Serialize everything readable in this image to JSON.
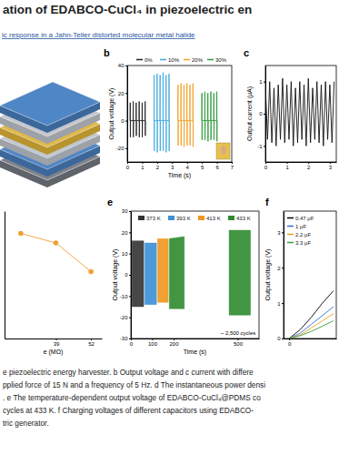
{
  "header": {
    "title": "ation of EDABCO-CuCl₄ in piezoelectric en",
    "subtitle": "ic response in a Jahn-Teller distorted molecular metal halide"
  },
  "chart_data": [
    {
      "type": "line",
      "title": "b",
      "xlabel": "Time (s)",
      "ylabel": "Output voltage (V)",
      "xlim": [
        0,
        7
      ],
      "xticks": [
        0,
        1,
        2,
        3,
        4,
        5,
        6,
        7
      ],
      "ylim": [
        -30,
        40
      ],
      "yticks": [
        -20,
        0,
        20,
        40
      ],
      "legend": "top",
      "series": [
        {
          "name": "0%",
          "color": "#222222",
          "x": [
            0.19,
            0.2,
            0.21,
            0.22,
            0.39,
            0.4,
            0.41,
            0.42,
            0.59,
            0.6,
            0.61,
            0.62,
            0.79,
            0.8,
            0.81,
            0.82,
            0.99,
            1.0,
            1.01,
            1.02,
            1.19,
            1.2,
            1.21,
            1.22
          ],
          "values": [
            0,
            13,
            -12,
            0,
            0,
            14,
            -12,
            0,
            0,
            13,
            -11,
            0,
            0,
            14,
            -12,
            0,
            0,
            13,
            -12,
            0,
            0,
            14,
            -11,
            0
          ]
        },
        {
          "name": "10%",
          "color": "#3fa9dc",
          "x": [
            1.79,
            1.8,
            1.81,
            1.82,
            1.99,
            2.0,
            2.01,
            2.02,
            2.19,
            2.2,
            2.21,
            2.22,
            2.39,
            2.4,
            2.41,
            2.42,
            2.59,
            2.6,
            2.61,
            2.62,
            2.79,
            2.8,
            2.81,
            2.82
          ],
          "values": [
            0,
            33,
            -22,
            0,
            0,
            34,
            -23,
            0,
            0,
            33,
            -22,
            0,
            0,
            35,
            -22,
            0,
            0,
            33,
            -23,
            0,
            0,
            34,
            -22,
            0
          ]
        },
        {
          "name": "20%",
          "color": "#f0a02a",
          "x": [
            3.39,
            3.4,
            3.41,
            3.42,
            3.59,
            3.6,
            3.61,
            3.62,
            3.79,
            3.8,
            3.81,
            3.82,
            3.99,
            4.0,
            4.01,
            4.02,
            4.19,
            4.2,
            4.21,
            4.22,
            4.39,
            4.4,
            4.41,
            4.42
          ],
          "values": [
            0,
            26,
            -18,
            0,
            0,
            27,
            -18,
            0,
            0,
            26,
            -19,
            0,
            0,
            27,
            -18,
            0,
            0,
            26,
            -18,
            0,
            0,
            27,
            -19,
            0
          ]
        },
        {
          "name": "30%",
          "color": "#2e9a3a",
          "x": [
            4.99,
            5.0,
            5.01,
            5.02,
            5.19,
            5.2,
            5.21,
            5.22,
            5.39,
            5.4,
            5.41,
            5.42,
            5.59,
            5.6,
            5.61,
            5.62,
            5.79,
            5.8,
            5.81,
            5.82,
            5.99,
            6.0,
            6.01,
            6.02
          ],
          "values": [
            0,
            20,
            -14,
            0,
            0,
            21,
            -14,
            0,
            0,
            20,
            -15,
            0,
            0,
            21,
            -14,
            0,
            0,
            20,
            -14,
            0,
            0,
            21,
            -15,
            0
          ]
        }
      ]
    },
    {
      "type": "line",
      "title": "c",
      "ylabel": "Output current (μA)",
      "xlim": [
        0,
        3.3
      ],
      "xticks": [
        0,
        1,
        2,
        3
      ],
      "ylim": [
        -1.5,
        1.5
      ],
      "yticks": [
        -1,
        0,
        1
      ],
      "x": [
        0,
        0.1,
        0.2,
        0.3,
        0.4,
        0.5,
        0.6,
        0.7,
        0.8,
        0.9,
        1,
        1.1,
        1.2,
        1.3,
        1.4,
        1.5,
        1.6,
        1.7,
        1.8,
        1.9,
        2,
        2.1,
        2.2,
        2.3,
        2.4,
        2.5,
        2.6,
        2.7,
        2.8,
        2.9,
        3,
        3.1,
        3.2
      ],
      "series": [
        {
          "color": "#111111",
          "values": [
            0.9,
            -0.8,
            1,
            -0.9,
            0.8,
            -1,
            0.9,
            -0.8,
            1.1,
            -0.9,
            0.9,
            -0.8,
            1,
            -1,
            0.8,
            -0.9,
            1,
            -0.8,
            0.9,
            -1,
            1.1,
            -0.9,
            0.8,
            -0.8,
            1,
            -0.9,
            0.9,
            -1,
            1,
            -0.8,
            0.9,
            -0.9,
            1
          ]
        }
      ]
    },
    {
      "type": "line",
      "xlabel": "e (MΩ)",
      "xlim": [
        20,
        56
      ],
      "xticks": [
        39,
        52
      ],
      "ylim": [
        0,
        0.8
      ],
      "tick_labels": "x",
      "marker": "circle",
      "x": [
        26,
        39,
        52
      ],
      "series": [
        {
          "color": "#f0a030",
          "values": [
            0.66,
            0.6,
            0.42
          ]
        }
      ]
    },
    {
      "type": "area",
      "title": "e",
      "xlabel": "Time (s)",
      "ylabel": "Output voltage (V)",
      "xlim": [
        0,
        600
      ],
      "xticks": [
        0,
        100,
        200,
        500
      ],
      "ylim": [
        -30,
        30
      ],
      "yticks": [
        -30,
        -20,
        -10,
        0,
        10,
        20,
        30
      ],
      "legend": "upper center",
      "annotations": [
        "~ 2,500 cycles"
      ],
      "series": [
        {
          "name": "373 K",
          "color": "#333333",
          "x": [
            5,
            60
          ],
          "values": [
            16,
            16
          ],
          "lower": [
            -15,
            -15
          ]
        },
        {
          "name": "393 K",
          "color": "#3a8fd6",
          "x": [
            65,
            120
          ],
          "values": [
            15,
            15
          ],
          "lower": [
            -14,
            -14
          ]
        },
        {
          "name": "413 K",
          "color": "#f0961e",
          "x": [
            125,
            175
          ],
          "values": [
            17,
            17
          ],
          "lower": [
            -13,
            -13
          ]
        },
        {
          "name": "433 K",
          "color": "#2e8b2e",
          "x": [
            180,
            250,
            300,
            460,
            560
          ],
          "values": [
            17,
            18,
            null,
            21,
            21
          ],
          "lower": [
            -16,
            -16,
            null,
            -19,
            -19
          ]
        }
      ]
    },
    {
      "type": "line",
      "title": "f",
      "ylabel": "Output voltage (V)",
      "xlim": [
        -1,
        8.5
      ],
      "xticks": [
        0
      ],
      "ylim": [
        0,
        3.6
      ],
      "yticks": [
        0,
        1,
        2,
        3
      ],
      "legend": "upper left",
      "x": [
        0,
        2,
        4,
        6,
        8
      ],
      "series": [
        {
          "name": "0.47 μF",
          "color": "#000000",
          "values": [
            0,
            0.25,
            0.6,
            1.0,
            1.35
          ]
        },
        {
          "name": "1 μF",
          "color": "#2f6fd6",
          "values": [
            0,
            0.15,
            0.4,
            0.65,
            0.9
          ]
        },
        {
          "name": "2.2 μF",
          "color": "#e8a020",
          "values": [
            0,
            0.1,
            0.3,
            0.5,
            0.7
          ]
        },
        {
          "name": "3.3 μF",
          "color": "#3a9a3a",
          "values": [
            0,
            0.08,
            0.2,
            0.35,
            0.5
          ]
        }
      ]
    }
  ],
  "caption": {
    "lines": [
      "e piezoelectric energy harvester. b Output voltage and c current with differe",
      "pplied force of 15 N and a frequency of 5 Hz. d The instantaneous power densi",
      ". e The temperature-dependent output voltage of EDABCO-CuCl₄@PDMS co",
      "cycles at 433 K. f Charging voltages of different capacitors using EDABCO-",
      "tric generator."
    ]
  }
}
